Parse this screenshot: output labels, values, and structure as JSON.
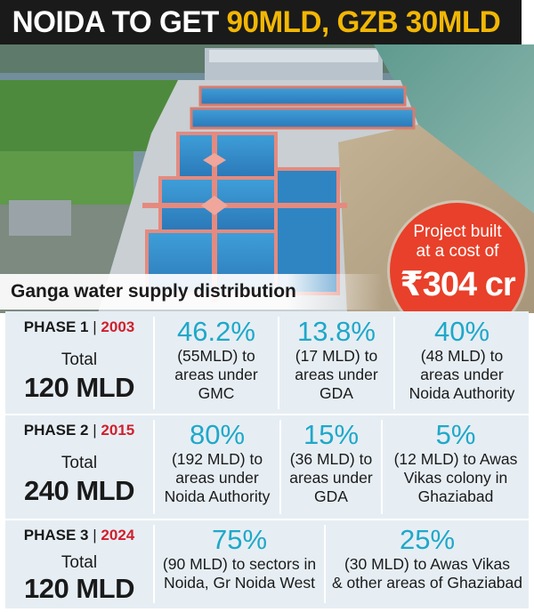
{
  "headline": {
    "prefix": "NOIDA TO GET ",
    "highlight": "90MLD, GZB 30MLD"
  },
  "badge": {
    "line1": "Project built",
    "line2": "at a cost of",
    "amount": "₹304 cr"
  },
  "section_title": "Ganga water supply distribution",
  "phases": [
    {
      "phase": "PHASE 1",
      "sep": "|",
      "year": "2003",
      "total_label": "Total",
      "total_value": "120 MLD",
      "shares": [
        {
          "pct": "46.2%",
          "lines": [
            "(55MLD) to",
            "areas under",
            "GMC"
          ]
        },
        {
          "pct": "13.8%",
          "lines": [
            "(17 MLD) to",
            "areas under",
            "GDA"
          ]
        },
        {
          "pct": "40%",
          "lines": [
            "(48 MLD) to",
            "areas under",
            "Noida Authority"
          ]
        }
      ]
    },
    {
      "phase": "PHASE 2",
      "sep": "|",
      "year": "2015",
      "total_label": "Total",
      "total_value": "240 MLD",
      "shares": [
        {
          "pct": "80%",
          "lines": [
            "(192 MLD) to",
            "areas under",
            "Noida Authority"
          ]
        },
        {
          "pct": "15%",
          "lines": [
            "(36 MLD) to",
            "areas under",
            "GDA"
          ]
        },
        {
          "pct": "5%",
          "lines": [
            "(12 MLD) to Awas",
            "Vikas colony in",
            "Ghaziabad"
          ]
        }
      ]
    },
    {
      "phase": "PHASE 3",
      "sep": "|",
      "year": "2024",
      "total_label": "Total",
      "total_value": "120 MLD",
      "shares": [
        {
          "pct": "75%",
          "lines": [
            "(90 MLD) to sectors in",
            "Noida, Gr Noida West"
          ]
        },
        {
          "pct": "25%",
          "lines": [
            "(30 MLD) to Awas Vikas",
            "& other areas of Ghaziabad"
          ]
        }
      ]
    }
  ],
  "colors": {
    "headline_bg": "#1a1a1a",
    "headline_highlight": "#f2b705",
    "badge": "#e8402a",
    "percent": "#1fa8c9",
    "year": "#d11f2b",
    "table_bg": "#e6eef4"
  }
}
